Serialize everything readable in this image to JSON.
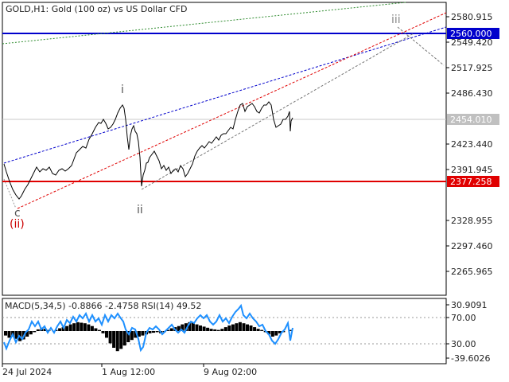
{
  "header": {
    "symbol_line": "GOLD,H1:  Gold (100 oz) vs US Dollar CFD"
  },
  "price_axis": {
    "ticks": [
      "2580.915",
      "2549.420",
      "2517.925",
      "2486.430",
      "2423.440",
      "2391.945",
      "2328.955",
      "2297.460",
      "2265.965"
    ]
  },
  "price_levels": {
    "resistance": {
      "label": "2560.000",
      "value": 2560.0,
      "color": "#0000cc"
    },
    "current": {
      "label": "2454.010",
      "value": 2454.01,
      "color": "#c0c0c0"
    },
    "support": {
      "label": "2377.258",
      "value": 2377.258,
      "color": "#e00000"
    }
  },
  "wave_labels": {
    "c": "c",
    "ii_red": "(ii)",
    "i": "i",
    "ii": "ii",
    "iii": "iii"
  },
  "indicator": {
    "label": "MACD(5,34,5) -0.8866 -2.4758 RSI(14) 49.52",
    "ticks": [
      "30.9091",
      "70.00",
      "30.00",
      "-39.6026"
    ]
  },
  "time_axis": {
    "labels": [
      "24 Jul 2024",
      "1 Aug 12:00",
      "9 Aug 02:00"
    ]
  },
  "colors": {
    "background": "#ffffff",
    "price_line": "#000000",
    "support": "#e00000",
    "resistance": "#0000cc",
    "channel_blue": "#0000cc",
    "channel_red": "#e00000",
    "trend_green": "#2e8b2e",
    "trend_gray": "#888888",
    "rsi": "#1e90ff",
    "wave_i": "#555555",
    "wave_ii_red": "#cc0000"
  },
  "chart_data": {
    "type": "line",
    "y_range": [
      2236,
      2600
    ],
    "price_path": [
      [
        5,
        206
      ],
      [
        8,
        216
      ],
      [
        12,
        228
      ],
      [
        16,
        238
      ],
      [
        20,
        245
      ],
      [
        24,
        250
      ],
      [
        27,
        246
      ],
      [
        31,
        238
      ],
      [
        35,
        232
      ],
      [
        38,
        226
      ],
      [
        42,
        218
      ],
      [
        46,
        210
      ],
      [
        50,
        216
      ],
      [
        54,
        212
      ],
      [
        58,
        214
      ],
      [
        62,
        210
      ],
      [
        66,
        218
      ],
      [
        70,
        220
      ],
      [
        74,
        214
      ],
      [
        78,
        212
      ],
      [
        82,
        215
      ],
      [
        86,
        212
      ],
      [
        90,
        208
      ],
      [
        93,
        200
      ],
      [
        96,
        192
      ],
      [
        100,
        188
      ],
      [
        104,
        184
      ],
      [
        108,
        186
      ],
      [
        112,
        175
      ],
      [
        116,
        168
      ],
      [
        120,
        160
      ],
      [
        124,
        154
      ],
      [
        127,
        155
      ],
      [
        130,
        150
      ],
      [
        133,
        155
      ],
      [
        136,
        162
      ],
      [
        139,
        160
      ],
      [
        142,
        156
      ],
      [
        145,
        150
      ],
      [
        148,
        142
      ],
      [
        151,
        136
      ],
      [
        154,
        132
      ],
      [
        156,
        136
      ],
      [
        158,
        150
      ],
      [
        160,
        172
      ],
      [
        162,
        188
      ],
      [
        164,
        170
      ],
      [
        166,
        162
      ],
      [
        168,
        158
      ],
      [
        170,
        165
      ],
      [
        172,
        168
      ],
      [
        174,
        178
      ],
      [
        176,
        198
      ],
      [
        178,
        234
      ],
      [
        180,
        220
      ],
      [
        182,
        214
      ],
      [
        184,
        205
      ],
      [
        186,
        204
      ],
      [
        188,
        198
      ],
      [
        191,
        194
      ],
      [
        194,
        190
      ],
      [
        197,
        196
      ],
      [
        200,
        202
      ],
      [
        203,
        212
      ],
      [
        206,
        208
      ],
      [
        209,
        214
      ],
      [
        212,
        210
      ],
      [
        215,
        218
      ],
      [
        218,
        214
      ],
      [
        221,
        212
      ],
      [
        224,
        216
      ],
      [
        227,
        208
      ],
      [
        230,
        212
      ],
      [
        233,
        222
      ],
      [
        236,
        218
      ],
      [
        239,
        212
      ],
      [
        242,
        206
      ],
      [
        245,
        196
      ],
      [
        248,
        190
      ],
      [
        251,
        186
      ],
      [
        254,
        183
      ],
      [
        257,
        186
      ],
      [
        260,
        182
      ],
      [
        263,
        178
      ],
      [
        266,
        180
      ],
      [
        269,
        176
      ],
      [
        272,
        172
      ],
      [
        275,
        176
      ],
      [
        278,
        170
      ],
      [
        281,
        168
      ],
      [
        284,
        168
      ],
      [
        287,
        164
      ],
      [
        290,
        160
      ],
      [
        293,
        162
      ],
      [
        296,
        150
      ],
      [
        299,
        140
      ],
      [
        302,
        132
      ],
      [
        305,
        130
      ],
      [
        308,
        140
      ],
      [
        311,
        134
      ],
      [
        314,
        132
      ],
      [
        317,
        130
      ],
      [
        320,
        134
      ],
      [
        323,
        140
      ],
      [
        326,
        142
      ],
      [
        329,
        136
      ],
      [
        332,
        132
      ],
      [
        335,
        132
      ],
      [
        338,
        128
      ],
      [
        341,
        132
      ],
      [
        344,
        150
      ],
      [
        347,
        160
      ],
      [
        350,
        158
      ],
      [
        353,
        156
      ],
      [
        356,
        150
      ],
      [
        359,
        150
      ],
      [
        362,
        146
      ],
      [
        364,
        140
      ],
      [
        365,
        165
      ],
      [
        366,
        152
      ],
      [
        368,
        148
      ]
    ],
    "indicator_range": [
      -39.6026,
      30.9091
    ],
    "macd_histogram": [
      -8,
      -12,
      -10,
      -14,
      -18,
      -15,
      -10,
      -6,
      -2,
      3,
      6,
      4,
      2,
      0,
      2,
      5,
      7,
      9,
      12,
      14,
      16,
      15,
      14,
      12,
      9,
      5,
      2,
      -4,
      -12,
      -22,
      -30,
      -36,
      -32,
      -26,
      -20,
      -16,
      -12,
      -10,
      -8,
      -6,
      -4,
      -3,
      -2,
      -4,
      -2,
      2,
      5,
      7,
      9,
      12,
      14,
      16,
      15,
      12,
      10,
      8,
      6,
      4,
      3,
      2,
      4,
      7,
      10,
      12,
      14,
      16,
      14,
      12,
      10,
      7,
      4,
      2,
      -2,
      -6,
      -10,
      -8,
      -4,
      -2,
      0,
      2
    ],
    "rsi_points": [
      [
        5,
        430
      ],
      [
        8,
        438
      ],
      [
        12,
        428
      ],
      [
        16,
        420
      ],
      [
        20,
        430
      ],
      [
        24,
        422
      ],
      [
        28,
        426
      ],
      [
        32,
        418
      ],
      [
        36,
        414
      ],
      [
        40,
        404
      ],
      [
        44,
        410
      ],
      [
        48,
        404
      ],
      [
        52,
        414
      ],
      [
        56,
        410
      ],
      [
        60,
        418
      ],
      [
        64,
        412
      ],
      [
        68,
        418
      ],
      [
        72,
        410
      ],
      [
        76,
        404
      ],
      [
        80,
        412
      ],
      [
        84,
        402
      ],
      [
        88,
        406
      ],
      [
        92,
        398
      ],
      [
        96,
        404
      ],
      [
        100,
        396
      ],
      [
        104,
        400
      ],
      [
        108,
        394
      ],
      [
        112,
        404
      ],
      [
        116,
        396
      ],
      [
        120,
        404
      ],
      [
        124,
        400
      ],
      [
        128,
        408
      ],
      [
        132,
        396
      ],
      [
        136,
        404
      ],
      [
        140,
        396
      ],
      [
        144,
        400
      ],
      [
        148,
        394
      ],
      [
        152,
        400
      ],
      [
        155,
        404
      ],
      [
        158,
        414
      ],
      [
        162,
        420
      ],
      [
        166,
        412
      ],
      [
        170,
        414
      ],
      [
        174,
        426
      ],
      [
        177,
        440
      ],
      [
        180,
        436
      ],
      [
        184,
        418
      ],
      [
        188,
        412
      ],
      [
        192,
        414
      ],
      [
        196,
        410
      ],
      [
        200,
        414
      ],
      [
        204,
        420
      ],
      [
        208,
        416
      ],
      [
        212,
        412
      ],
      [
        216,
        408
      ],
      [
        220,
        414
      ],
      [
        224,
        418
      ],
      [
        228,
        414
      ],
      [
        232,
        418
      ],
      [
        236,
        410
      ],
      [
        240,
        404
      ],
      [
        244,
        406
      ],
      [
        248,
        400
      ],
      [
        252,
        396
      ],
      [
        256,
        400
      ],
      [
        260,
        396
      ],
      [
        264,
        404
      ],
      [
        268,
        408
      ],
      [
        272,
        404
      ],
      [
        276,
        396
      ],
      [
        280,
        404
      ],
      [
        284,
        400
      ],
      [
        288,
        406
      ],
      [
        292,
        398
      ],
      [
        296,
        392
      ],
      [
        300,
        388
      ],
      [
        303,
        384
      ],
      [
        306,
        396
      ],
      [
        310,
        400
      ],
      [
        314,
        394
      ],
      [
        318,
        400
      ],
      [
        322,
        404
      ],
      [
        326,
        410
      ],
      [
        330,
        408
      ],
      [
        334,
        416
      ],
      [
        338,
        420
      ],
      [
        342,
        428
      ],
      [
        346,
        432
      ],
      [
        350,
        426
      ],
      [
        354,
        418
      ],
      [
        358,
        414
      ],
      [
        362,
        406
      ],
      [
        365,
        428
      ],
      [
        368,
        412
      ]
    ]
  }
}
